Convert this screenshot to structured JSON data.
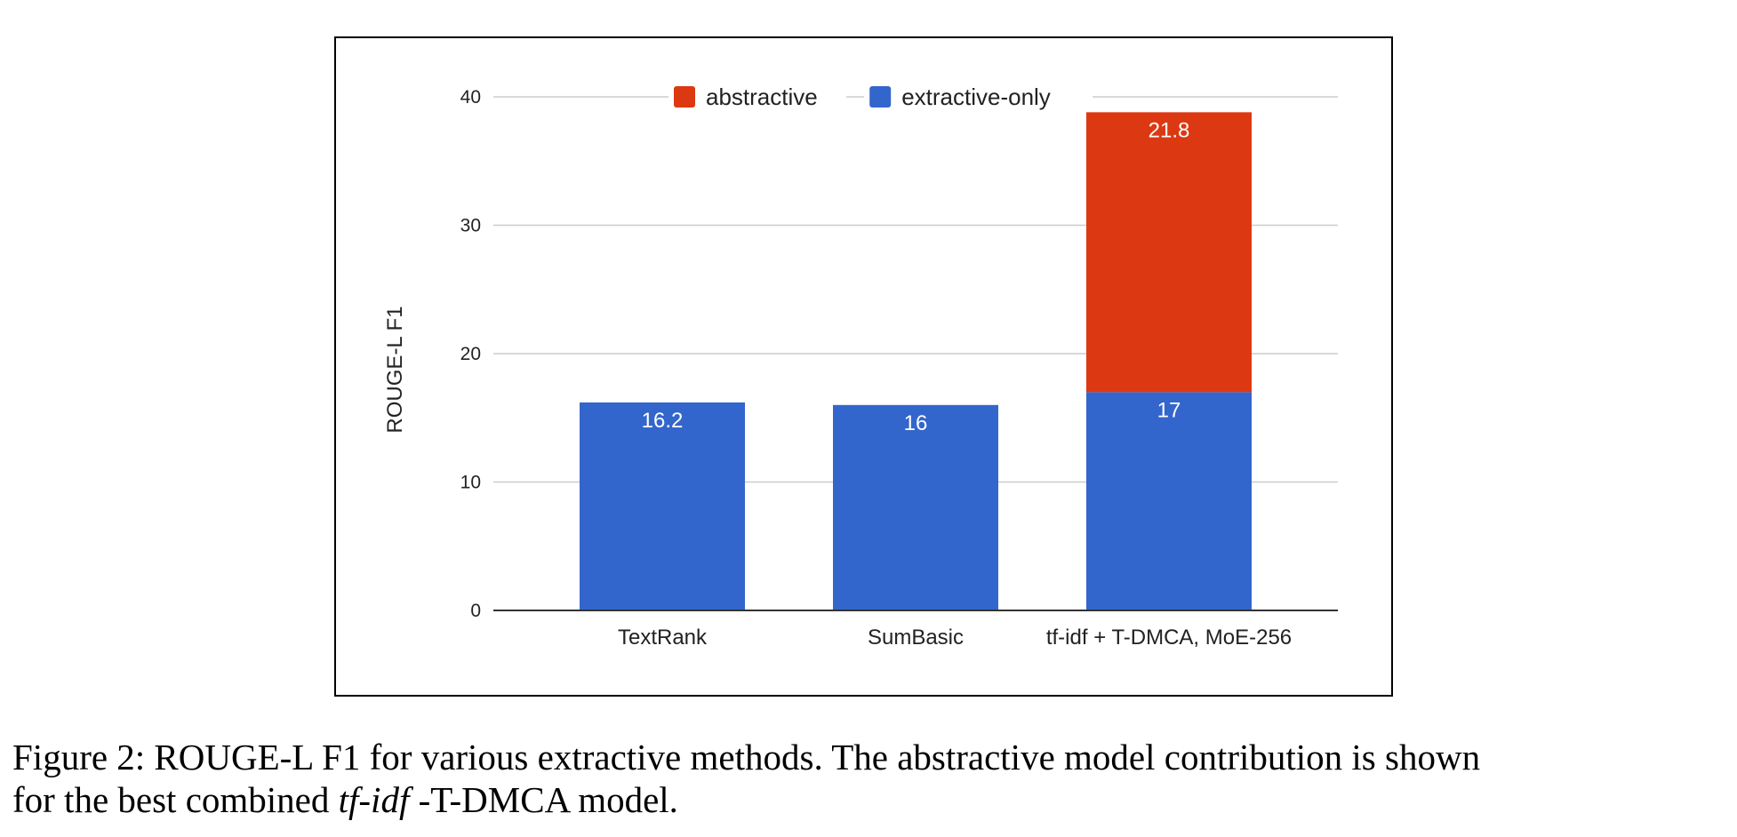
{
  "chart_data": {
    "type": "bar",
    "stacked": true,
    "categories": [
      "TextRank",
      "SumBasic",
      "tf-idf + T-DMCA, MoE-256"
    ],
    "series": [
      {
        "name": "extractive-only",
        "color": "#3366cc",
        "values": [
          16.2,
          16,
          17
        ],
        "labels": [
          "16.2",
          "16",
          "17"
        ]
      },
      {
        "name": "abstractive",
        "color": "#dc3912",
        "values": [
          null,
          null,
          21.8
        ],
        "labels": [
          "",
          "",
          "21.8"
        ]
      }
    ],
    "ylabel": "ROUGE-L F1",
    "xlabel": "",
    "ylim": [
      0,
      40
    ],
    "yticks": [
      0,
      10,
      20,
      30,
      40
    ],
    "grid": true,
    "legend": {
      "position": "top",
      "order": [
        "abstractive",
        "extractive-only"
      ]
    }
  },
  "caption": {
    "line1": "Figure 2: ROUGE-L F1 for various extractive methods.  The abstractive model contribution is shown",
    "line2_prefix": "for the best combined ",
    "line2_italic": "tf-idf",
    "line2_suffix": " -T-DMCA model."
  }
}
